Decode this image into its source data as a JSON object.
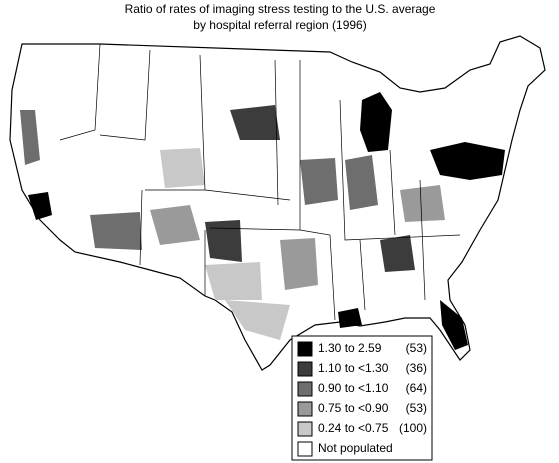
{
  "header": {
    "title_lines": [
      "Ratio of rates of imaging stress testing to the U.S. average",
      "by hospital referral region (1996)"
    ]
  },
  "legend": {
    "entries": [
      {
        "label": "1.30 to 2.59",
        "count": "(53)",
        "color": "#000000"
      },
      {
        "label": "1.10 to <1.30",
        "count": "(36)",
        "color": "#3c3c3c"
      },
      {
        "label": "0.90 to <1.10",
        "count": "(64)",
        "color": "#6e6e6e"
      },
      {
        "label": "0.75 to <0.90",
        "count": "(53)",
        "color": "#9a9a9a"
      },
      {
        "label": "0.24 to <0.75",
        "count": "(100)",
        "color": "#c8c8c8"
      },
      {
        "label": "Not populated",
        "color": "#ffffff"
      }
    ]
  }
}
